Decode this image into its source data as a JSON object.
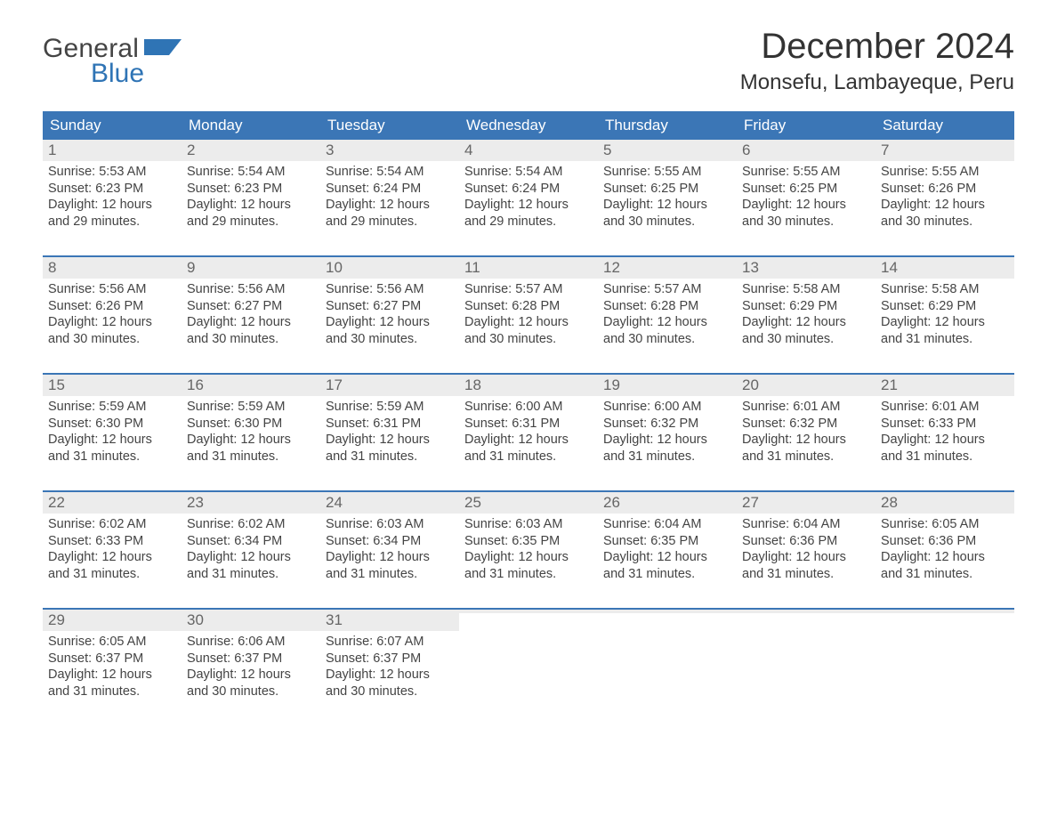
{
  "logo": {
    "text_top": "General",
    "text_bottom": "Blue",
    "top_color": "#444444",
    "bottom_color": "#2f74b5",
    "icon_fill": "#2f74b5"
  },
  "header": {
    "month_title": "December 2024",
    "location": "Monsefu, Lambayeque, Peru"
  },
  "styling": {
    "page_background": "#ffffff",
    "header_bar_bg": "#3b76b6",
    "header_bar_text": "#ffffff",
    "week_border_color": "#3b76b6",
    "daynum_bar_bg": "#ececec",
    "daynum_color": "#666666",
    "body_text_color": "#444444",
    "month_title_fontsize": 40,
    "location_fontsize": 24,
    "day_header_fontsize": 17,
    "body_fontsize": 14.5,
    "columns": 7,
    "rows": 5
  },
  "day_headers": [
    "Sunday",
    "Monday",
    "Tuesday",
    "Wednesday",
    "Thursday",
    "Friday",
    "Saturday"
  ],
  "weeks": [
    [
      {
        "day": "1",
        "sunrise": "Sunrise: 5:53 AM",
        "sunset": "Sunset: 6:23 PM",
        "daylight1": "Daylight: 12 hours",
        "daylight2": "and 29 minutes."
      },
      {
        "day": "2",
        "sunrise": "Sunrise: 5:54 AM",
        "sunset": "Sunset: 6:23 PM",
        "daylight1": "Daylight: 12 hours",
        "daylight2": "and 29 minutes."
      },
      {
        "day": "3",
        "sunrise": "Sunrise: 5:54 AM",
        "sunset": "Sunset: 6:24 PM",
        "daylight1": "Daylight: 12 hours",
        "daylight2": "and 29 minutes."
      },
      {
        "day": "4",
        "sunrise": "Sunrise: 5:54 AM",
        "sunset": "Sunset: 6:24 PM",
        "daylight1": "Daylight: 12 hours",
        "daylight2": "and 29 minutes."
      },
      {
        "day": "5",
        "sunrise": "Sunrise: 5:55 AM",
        "sunset": "Sunset: 6:25 PM",
        "daylight1": "Daylight: 12 hours",
        "daylight2": "and 30 minutes."
      },
      {
        "day": "6",
        "sunrise": "Sunrise: 5:55 AM",
        "sunset": "Sunset: 6:25 PM",
        "daylight1": "Daylight: 12 hours",
        "daylight2": "and 30 minutes."
      },
      {
        "day": "7",
        "sunrise": "Sunrise: 5:55 AM",
        "sunset": "Sunset: 6:26 PM",
        "daylight1": "Daylight: 12 hours",
        "daylight2": "and 30 minutes."
      }
    ],
    [
      {
        "day": "8",
        "sunrise": "Sunrise: 5:56 AM",
        "sunset": "Sunset: 6:26 PM",
        "daylight1": "Daylight: 12 hours",
        "daylight2": "and 30 minutes."
      },
      {
        "day": "9",
        "sunrise": "Sunrise: 5:56 AM",
        "sunset": "Sunset: 6:27 PM",
        "daylight1": "Daylight: 12 hours",
        "daylight2": "and 30 minutes."
      },
      {
        "day": "10",
        "sunrise": "Sunrise: 5:56 AM",
        "sunset": "Sunset: 6:27 PM",
        "daylight1": "Daylight: 12 hours",
        "daylight2": "and 30 minutes."
      },
      {
        "day": "11",
        "sunrise": "Sunrise: 5:57 AM",
        "sunset": "Sunset: 6:28 PM",
        "daylight1": "Daylight: 12 hours",
        "daylight2": "and 30 minutes."
      },
      {
        "day": "12",
        "sunrise": "Sunrise: 5:57 AM",
        "sunset": "Sunset: 6:28 PM",
        "daylight1": "Daylight: 12 hours",
        "daylight2": "and 30 minutes."
      },
      {
        "day": "13",
        "sunrise": "Sunrise: 5:58 AM",
        "sunset": "Sunset: 6:29 PM",
        "daylight1": "Daylight: 12 hours",
        "daylight2": "and 30 minutes."
      },
      {
        "day": "14",
        "sunrise": "Sunrise: 5:58 AM",
        "sunset": "Sunset: 6:29 PM",
        "daylight1": "Daylight: 12 hours",
        "daylight2": "and 31 minutes."
      }
    ],
    [
      {
        "day": "15",
        "sunrise": "Sunrise: 5:59 AM",
        "sunset": "Sunset: 6:30 PM",
        "daylight1": "Daylight: 12 hours",
        "daylight2": "and 31 minutes."
      },
      {
        "day": "16",
        "sunrise": "Sunrise: 5:59 AM",
        "sunset": "Sunset: 6:30 PM",
        "daylight1": "Daylight: 12 hours",
        "daylight2": "and 31 minutes."
      },
      {
        "day": "17",
        "sunrise": "Sunrise: 5:59 AM",
        "sunset": "Sunset: 6:31 PM",
        "daylight1": "Daylight: 12 hours",
        "daylight2": "and 31 minutes."
      },
      {
        "day": "18",
        "sunrise": "Sunrise: 6:00 AM",
        "sunset": "Sunset: 6:31 PM",
        "daylight1": "Daylight: 12 hours",
        "daylight2": "and 31 minutes."
      },
      {
        "day": "19",
        "sunrise": "Sunrise: 6:00 AM",
        "sunset": "Sunset: 6:32 PM",
        "daylight1": "Daylight: 12 hours",
        "daylight2": "and 31 minutes."
      },
      {
        "day": "20",
        "sunrise": "Sunrise: 6:01 AM",
        "sunset": "Sunset: 6:32 PM",
        "daylight1": "Daylight: 12 hours",
        "daylight2": "and 31 minutes."
      },
      {
        "day": "21",
        "sunrise": "Sunrise: 6:01 AM",
        "sunset": "Sunset: 6:33 PM",
        "daylight1": "Daylight: 12 hours",
        "daylight2": "and 31 minutes."
      }
    ],
    [
      {
        "day": "22",
        "sunrise": "Sunrise: 6:02 AM",
        "sunset": "Sunset: 6:33 PM",
        "daylight1": "Daylight: 12 hours",
        "daylight2": "and 31 minutes."
      },
      {
        "day": "23",
        "sunrise": "Sunrise: 6:02 AM",
        "sunset": "Sunset: 6:34 PM",
        "daylight1": "Daylight: 12 hours",
        "daylight2": "and 31 minutes."
      },
      {
        "day": "24",
        "sunrise": "Sunrise: 6:03 AM",
        "sunset": "Sunset: 6:34 PM",
        "daylight1": "Daylight: 12 hours",
        "daylight2": "and 31 minutes."
      },
      {
        "day": "25",
        "sunrise": "Sunrise: 6:03 AM",
        "sunset": "Sunset: 6:35 PM",
        "daylight1": "Daylight: 12 hours",
        "daylight2": "and 31 minutes."
      },
      {
        "day": "26",
        "sunrise": "Sunrise: 6:04 AM",
        "sunset": "Sunset: 6:35 PM",
        "daylight1": "Daylight: 12 hours",
        "daylight2": "and 31 minutes."
      },
      {
        "day": "27",
        "sunrise": "Sunrise: 6:04 AM",
        "sunset": "Sunset: 6:36 PM",
        "daylight1": "Daylight: 12 hours",
        "daylight2": "and 31 minutes."
      },
      {
        "day": "28",
        "sunrise": "Sunrise: 6:05 AM",
        "sunset": "Sunset: 6:36 PM",
        "daylight1": "Daylight: 12 hours",
        "daylight2": "and 31 minutes."
      }
    ],
    [
      {
        "day": "29",
        "sunrise": "Sunrise: 6:05 AM",
        "sunset": "Sunset: 6:37 PM",
        "daylight1": "Daylight: 12 hours",
        "daylight2": "and 31 minutes."
      },
      {
        "day": "30",
        "sunrise": "Sunrise: 6:06 AM",
        "sunset": "Sunset: 6:37 PM",
        "daylight1": "Daylight: 12 hours",
        "daylight2": "and 30 minutes."
      },
      {
        "day": "31",
        "sunrise": "Sunrise: 6:07 AM",
        "sunset": "Sunset: 6:37 PM",
        "daylight1": "Daylight: 12 hours",
        "daylight2": "and 30 minutes."
      },
      {
        "empty": true
      },
      {
        "empty": true
      },
      {
        "empty": true
      },
      {
        "empty": true
      }
    ]
  ]
}
